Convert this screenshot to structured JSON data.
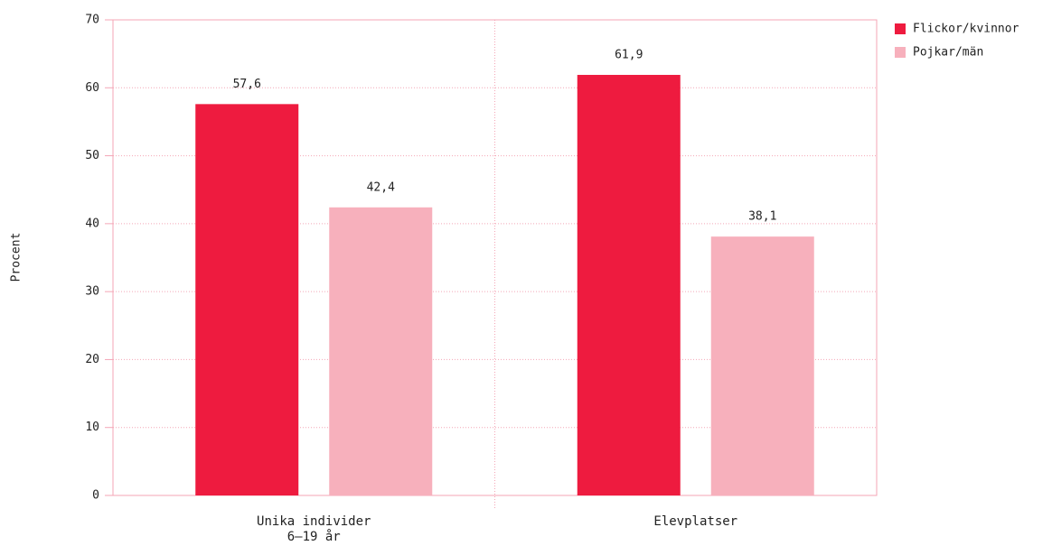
{
  "chart_data": {
    "type": "bar",
    "y_label": "Procent",
    "categories": [
      "Unika individer\n6–19 år",
      "Elevplatser"
    ],
    "series": [
      {
        "name": "Flickor/kvinnor",
        "color": "#ee1b3f",
        "values": [
          57.6,
          61.9
        ],
        "value_labels": [
          "57,6",
          "61,9"
        ]
      },
      {
        "name": "Pojkar/män",
        "color": "#f7b0bc",
        "values": [
          42.4,
          38.1
        ],
        "value_labels": [
          "42,4",
          "38,1"
        ]
      }
    ],
    "ylim": [
      0,
      70
    ],
    "yticks": [
      0,
      10,
      20,
      30,
      40,
      50,
      60,
      70
    ],
    "grid": true
  }
}
